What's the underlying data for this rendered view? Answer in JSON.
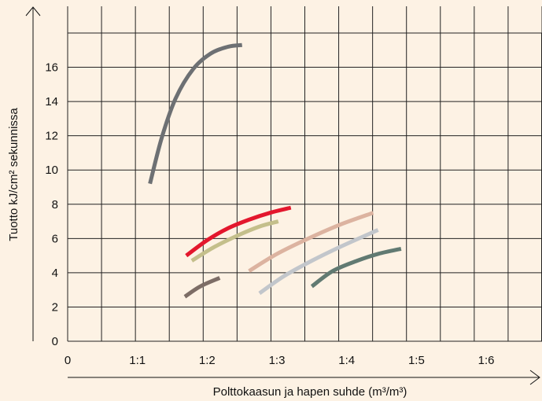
{
  "chart_data": {
    "type": "line",
    "title": "",
    "xlabel": "Polttokaasun ja hapen suhde (m³/m³)",
    "ylabel": "Tuotto kJ/cm² sekunnissa",
    "x_ticks": [
      {
        "label": "0",
        "value": 0
      },
      {
        "label": "1:1",
        "value": 1.0
      },
      {
        "label": "1:2",
        "value": 2.0
      },
      {
        "label": "1:3",
        "value": 3.0
      },
      {
        "label": "1:4",
        "value": 4.0
      },
      {
        "label": "1:5",
        "value": 5.0
      },
      {
        "label": "1:6",
        "value": 6.0
      }
    ],
    "y_ticks": [
      0,
      2,
      4,
      6,
      8,
      10,
      12,
      14,
      16
    ],
    "xlim": [
      0,
      6.8
    ],
    "ylim": [
      0,
      18
    ],
    "grid": true,
    "series": [
      {
        "color": "#6d7073",
        "x": [
          1.18,
          1.35,
          1.55,
          1.8,
          2.05,
          2.3,
          2.5
        ],
        "y": [
          9.2,
          11.9,
          14.2,
          15.9,
          16.8,
          17.2,
          17.3
        ]
      },
      {
        "color": "#e3172d",
        "x": [
          1.7,
          2.0,
          2.3,
          2.6,
          2.9,
          3.2
        ],
        "y": [
          5.0,
          5.9,
          6.6,
          7.1,
          7.5,
          7.8
        ]
      },
      {
        "color": "#c4bf8b",
        "x": [
          1.78,
          2.1,
          2.45,
          2.75,
          3.02
        ],
        "y": [
          4.7,
          5.5,
          6.2,
          6.7,
          7.0
        ]
      },
      {
        "color": "#dcb3a0",
        "x": [
          2.6,
          3.0,
          3.45,
          3.9,
          4.38
        ],
        "y": [
          4.1,
          5.1,
          6.0,
          6.8,
          7.5
        ]
      },
      {
        "color": "#c2c6cb",
        "x": [
          2.75,
          3.1,
          3.5,
          3.9,
          4.45
        ],
        "y": [
          2.8,
          3.8,
          4.7,
          5.5,
          6.5
        ]
      },
      {
        "color": "#617a72",
        "x": [
          3.5,
          3.8,
          4.15,
          4.45,
          4.78
        ],
        "y": [
          3.2,
          4.1,
          4.7,
          5.1,
          5.4
        ]
      },
      {
        "color": "#7d6d66",
        "x": [
          1.68,
          1.9,
          2.18
        ],
        "y": [
          2.6,
          3.2,
          3.7
        ]
      }
    ]
  }
}
